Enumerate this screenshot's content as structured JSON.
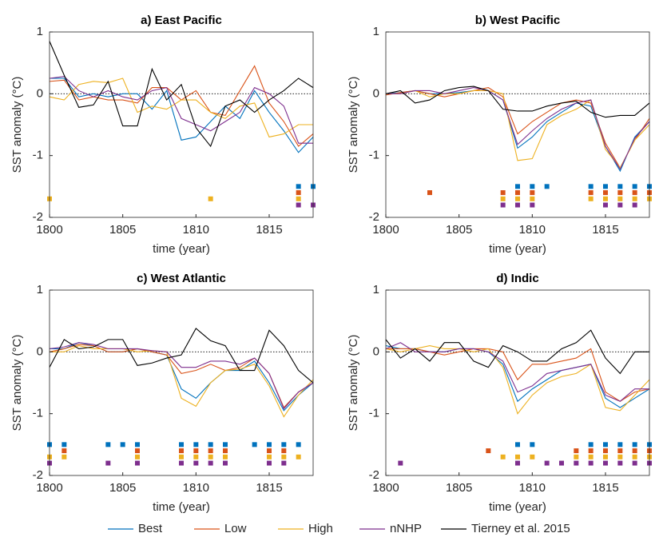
{
  "chart_data": [
    {
      "type": "line",
      "title": "a) East Pacific",
      "xlabel": "time (year)",
      "ylabel": "SST anomaly (°C)",
      "x": [
        1800,
        1801,
        1802,
        1803,
        1804,
        1805,
        1806,
        1807,
        1808,
        1809,
        1810,
        1811,
        1812,
        1813,
        1814,
        1815,
        1816,
        1817,
        1818
      ],
      "xlim": [
        1800,
        1818
      ],
      "xticks": [
        1800,
        1805,
        1810,
        1815
      ],
      "ylim": [
        -2,
        1
      ],
      "yticks": [
        -2,
        -1,
        0,
        1
      ],
      "reference_line": 0,
      "series": [
        {
          "name": "Best",
          "color": "#0072bd",
          "values": [
            0.25,
            0.25,
            -0.05,
            0.0,
            -0.05,
            0.0,
            0.0,
            -0.25,
            0.05,
            -0.75,
            -0.7,
            -0.45,
            -0.2,
            -0.4,
            0.05,
            -0.3,
            -0.6,
            -0.95,
            -0.7
          ],
          "marker_y": -1.5,
          "marker_x": [
            1817,
            1818
          ]
        },
        {
          "name": "Low",
          "color": "#d95319",
          "values": [
            0.2,
            0.22,
            -0.1,
            -0.05,
            -0.1,
            -0.1,
            -0.15,
            0.1,
            0.1,
            -0.1,
            0.05,
            -0.3,
            -0.35,
            0.05,
            0.45,
            -0.15,
            -0.45,
            -0.85,
            -0.65
          ],
          "marker_y": -1.6,
          "marker_x": [
            1817
          ]
        },
        {
          "name": "High",
          "color": "#edb120",
          "values": [
            -0.05,
            -0.1,
            0.15,
            0.2,
            0.18,
            0.25,
            -0.3,
            -0.2,
            -0.25,
            -0.1,
            -0.1,
            -0.3,
            -0.4,
            -0.2,
            -0.15,
            -0.7,
            -0.65,
            -0.5,
            -0.5
          ],
          "marker_y": -1.7,
          "marker_x": [
            1800,
            1811,
            1817
          ]
        },
        {
          "name": "nNHP",
          "color": "#7e2f8e",
          "values": [
            0.25,
            0.28,
            0.05,
            -0.05,
            0.05,
            -0.05,
            -0.1,
            0.05,
            0.1,
            -0.4,
            -0.5,
            -0.6,
            -0.45,
            -0.3,
            0.1,
            0.0,
            -0.2,
            -0.8,
            -0.8
          ],
          "marker_y": -1.8,
          "marker_x": [
            1817,
            1818
          ]
        },
        {
          "name": "Tierney et al. 2015",
          "color": "#000000",
          "values": [
            0.85,
            0.3,
            -0.22,
            -0.18,
            0.2,
            -0.52,
            -0.52,
            0.4,
            -0.1,
            0.15,
            -0.55,
            -0.85,
            -0.2,
            -0.1,
            -0.3,
            -0.1,
            0.05,
            0.25,
            0.1
          ]
        }
      ]
    },
    {
      "type": "line",
      "title": "b) West Pacific",
      "xlabel": "time (year)",
      "ylabel": "SST anomaly (°C)",
      "x": [
        1800,
        1801,
        1802,
        1803,
        1804,
        1805,
        1806,
        1807,
        1808,
        1809,
        1810,
        1811,
        1812,
        1813,
        1814,
        1815,
        1816,
        1817,
        1818
      ],
      "xlim": [
        1800,
        1818
      ],
      "xticks": [
        1800,
        1805,
        1810,
        1815
      ],
      "ylim": [
        -2,
        1
      ],
      "yticks": [
        -2,
        -1,
        0,
        1
      ],
      "reference_line": 0,
      "series": [
        {
          "name": "Best",
          "color": "#0072bd",
          "values": [
            0.0,
            0.02,
            0.05,
            0.0,
            0.0,
            0.02,
            0.05,
            0.05,
            -0.1,
            -0.88,
            -0.7,
            -0.45,
            -0.3,
            -0.15,
            -0.2,
            -0.85,
            -1.25,
            -0.7,
            -0.45
          ],
          "marker_y": -1.5,
          "marker_x": [
            1809,
            1810,
            1811,
            1814,
            1815,
            1816,
            1817,
            1818
          ]
        },
        {
          "name": "Low",
          "color": "#d95319",
          "values": [
            -0.02,
            0.02,
            0.05,
            0.0,
            -0.05,
            0.0,
            0.05,
            0.1,
            -0.05,
            -0.65,
            -0.45,
            -0.3,
            -0.15,
            -0.1,
            -0.15,
            -0.8,
            -1.2,
            -0.75,
            -0.4
          ],
          "marker_y": -1.6,
          "marker_x": [
            1803,
            1808,
            1809,
            1810,
            1814,
            1815,
            1816,
            1817,
            1818
          ]
        },
        {
          "name": "High",
          "color": "#edb120",
          "values": [
            0.0,
            0.0,
            0.05,
            -0.05,
            0.0,
            0.0,
            0.05,
            0.05,
            0.0,
            -1.08,
            -1.05,
            -0.5,
            -0.35,
            -0.25,
            -0.1,
            -0.9,
            -1.2,
            -0.75,
            -0.5
          ],
          "marker_y": -1.7,
          "marker_x": [
            1808,
            1809,
            1810,
            1814,
            1815,
            1816,
            1817,
            1818
          ]
        },
        {
          "name": "nNHP",
          "color": "#7e2f8e",
          "values": [
            0.0,
            0.0,
            0.05,
            0.05,
            0.0,
            0.05,
            0.1,
            0.05,
            -0.1,
            -0.82,
            -0.6,
            -0.4,
            -0.25,
            -0.15,
            -0.1,
            -0.85,
            -1.22,
            -0.72,
            -0.45
          ],
          "marker_y": -1.8,
          "marker_x": [
            1808,
            1809,
            1810,
            1815,
            1816,
            1817
          ]
        },
        {
          "name": "Tierney et al. 2015",
          "color": "#000000",
          "values": [
            0.0,
            0.05,
            -0.15,
            -0.1,
            0.05,
            0.1,
            0.12,
            0.05,
            -0.25,
            -0.28,
            -0.28,
            -0.2,
            -0.15,
            -0.12,
            -0.3,
            -0.38,
            -0.35,
            -0.35,
            -0.15
          ]
        }
      ]
    },
    {
      "type": "line",
      "title": "c) West Atlantic",
      "xlabel": "time (year)",
      "ylabel": "SST anomaly (°C)",
      "x": [
        1800,
        1801,
        1802,
        1803,
        1804,
        1805,
        1806,
        1807,
        1808,
        1809,
        1810,
        1811,
        1812,
        1813,
        1814,
        1815,
        1816,
        1817,
        1818
      ],
      "xlim": [
        1800,
        1818
      ],
      "xticks": [
        1800,
        1805,
        1810,
        1815
      ],
      "ylim": [
        -2,
        1
      ],
      "yticks": [
        -2,
        -1,
        0,
        1
      ],
      "reference_line": 0,
      "series": [
        {
          "name": "Best",
          "color": "#0072bd",
          "values": [
            0.05,
            0.05,
            0.15,
            0.1,
            0.0,
            0.0,
            0.05,
            0.0,
            -0.05,
            -0.6,
            -0.75,
            -0.5,
            -0.3,
            -0.3,
            -0.15,
            -0.5,
            -0.95,
            -0.7,
            -0.5
          ],
          "marker_y": -1.5,
          "marker_x": [
            1800,
            1801,
            1804,
            1805,
            1806,
            1809,
            1810,
            1811,
            1812,
            1814,
            1815,
            1816,
            1817
          ]
        },
        {
          "name": "Low",
          "color": "#d95319",
          "values": [
            0.0,
            0.05,
            0.12,
            0.1,
            0.0,
            0.0,
            0.05,
            0.0,
            -0.05,
            -0.35,
            -0.3,
            -0.2,
            -0.3,
            -0.25,
            -0.1,
            -0.35,
            -0.9,
            -0.65,
            -0.5
          ],
          "marker_y": -1.6,
          "marker_x": [
            1801,
            1806,
            1809,
            1810,
            1811,
            1812,
            1815,
            1816
          ]
        },
        {
          "name": "High",
          "color": "#edb120",
          "values": [
            0.0,
            0.0,
            0.1,
            0.05,
            0.05,
            0.05,
            0.0,
            0.02,
            0.0,
            -0.75,
            -0.88,
            -0.5,
            -0.3,
            -0.28,
            -0.2,
            -0.55,
            -1.05,
            -0.7,
            -0.45
          ],
          "marker_y": -1.7,
          "marker_x": [
            1800,
            1801,
            1806,
            1809,
            1810,
            1811,
            1812,
            1815,
            1816,
            1817
          ]
        },
        {
          "name": "nNHP",
          "color": "#7e2f8e",
          "values": [
            0.05,
            0.08,
            0.15,
            0.12,
            0.05,
            0.05,
            0.05,
            0.02,
            0.0,
            -0.25,
            -0.25,
            -0.15,
            -0.15,
            -0.2,
            -0.1,
            -0.35,
            -0.92,
            -0.65,
            -0.5
          ],
          "marker_y": -1.8,
          "marker_x": [
            1800,
            1804,
            1806,
            1809,
            1810,
            1811,
            1812,
            1815,
            1816
          ]
        },
        {
          "name": "Tierney et al. 2015",
          "color": "#000000",
          "values": [
            -0.25,
            0.2,
            0.05,
            0.08,
            0.2,
            0.2,
            -0.22,
            -0.18,
            -0.1,
            -0.05,
            0.38,
            0.18,
            0.1,
            -0.3,
            -0.3,
            0.35,
            0.1,
            -0.3,
            -0.5
          ]
        }
      ]
    },
    {
      "type": "line",
      "title": "d) Indic",
      "xlabel": "time (year)",
      "ylabel": "SST anomaly (°C)",
      "x": [
        1800,
        1801,
        1802,
        1803,
        1804,
        1805,
        1806,
        1807,
        1808,
        1809,
        1810,
        1811,
        1812,
        1813,
        1814,
        1815,
        1816,
        1817,
        1818
      ],
      "xlim": [
        1800,
        1818
      ],
      "xticks": [
        1800,
        1805,
        1810,
        1815
      ],
      "ylim": [
        -2,
        1
      ],
      "yticks": [
        -2,
        -1,
        0,
        1
      ],
      "reference_line": 0,
      "series": [
        {
          "name": "Best",
          "color": "#0072bd",
          "values": [
            0.1,
            0.05,
            0.05,
            0.0,
            0.0,
            0.05,
            0.05,
            0.0,
            -0.2,
            -0.8,
            -0.6,
            -0.45,
            -0.3,
            -0.25,
            -0.2,
            -0.75,
            -0.9,
            -0.75,
            -0.6
          ],
          "marker_y": -1.5,
          "marker_x": [
            1809,
            1810,
            1814,
            1815,
            1816,
            1817,
            1818
          ]
        },
        {
          "name": "Low",
          "color": "#d95319",
          "values": [
            0.05,
            0.05,
            0.05,
            0.0,
            -0.05,
            0.0,
            0.05,
            0.05,
            0.0,
            -0.45,
            -0.2,
            -0.2,
            -0.15,
            -0.1,
            0.05,
            -0.65,
            -0.8,
            -0.65,
            -0.6
          ],
          "marker_y": -1.6,
          "marker_x": [
            1807,
            1813,
            1814,
            1815,
            1816,
            1817,
            1818
          ]
        },
        {
          "name": "High",
          "color": "#edb120",
          "values": [
            0.05,
            0.0,
            0.05,
            0.1,
            0.05,
            0.05,
            0.0,
            0.05,
            -0.25,
            -1.0,
            -0.7,
            -0.5,
            -0.4,
            -0.35,
            -0.2,
            -0.9,
            -0.95,
            -0.7,
            -0.45
          ],
          "marker_y": -1.7,
          "marker_x": [
            1808,
            1809,
            1810,
            1813,
            1814,
            1815,
            1816,
            1817,
            1818
          ]
        },
        {
          "name": "nNHP",
          "color": "#7e2f8e",
          "values": [
            0.05,
            0.15,
            0.0,
            0.0,
            0.0,
            0.05,
            0.05,
            0.0,
            -0.15,
            -0.65,
            -0.55,
            -0.35,
            -0.3,
            -0.25,
            -0.2,
            -0.7,
            -0.8,
            -0.6,
            -0.6
          ],
          "marker_y": -1.8,
          "marker_x": [
            1801,
            1809,
            1811,
            1812,
            1813,
            1814,
            1815,
            1816,
            1817,
            1818
          ]
        },
        {
          "name": "Tierney et al. 2015",
          "color": "#000000",
          "values": [
            0.2,
            -0.1,
            0.05,
            -0.15,
            0.15,
            0.15,
            -0.15,
            -0.25,
            0.1,
            0.0,
            -0.15,
            -0.15,
            0.05,
            0.15,
            0.35,
            -0.1,
            -0.35,
            0.0,
            0.0
          ]
        }
      ]
    }
  ]
}
